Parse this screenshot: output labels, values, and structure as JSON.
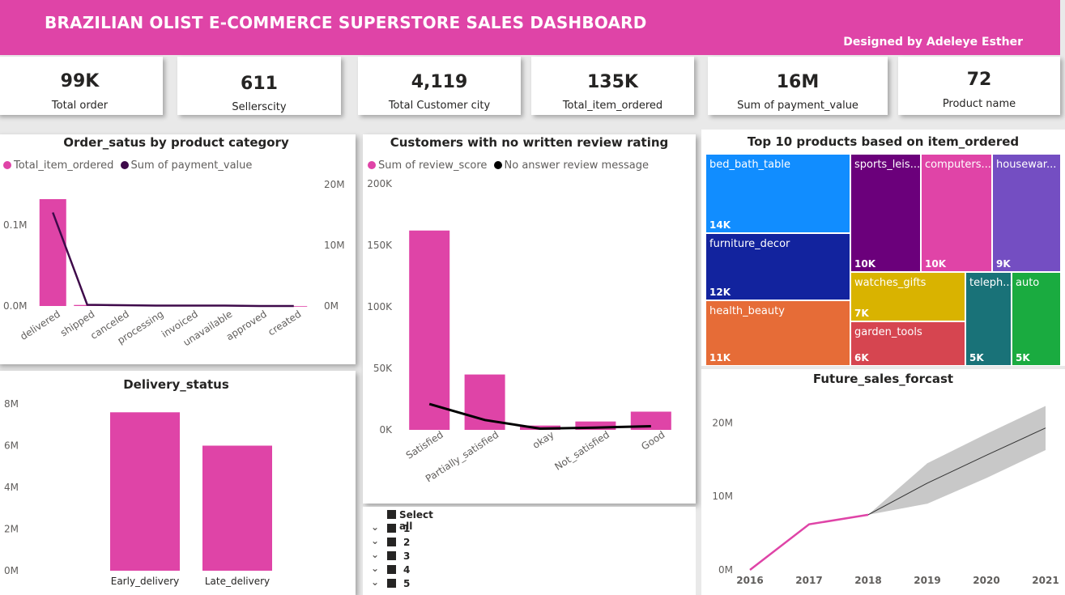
{
  "header": {
    "title": "BRAZILIAN OLIST E-COMMERCE SUPERSTORE SALES DASHBOARD",
    "credit": "Designed by Adeleye Esther"
  },
  "kpis": [
    {
      "value": "99K",
      "label": "Total order"
    },
    {
      "value": "611",
      "label": "Sellerscity"
    },
    {
      "value": "4,119",
      "label": "Total Customer city"
    },
    {
      "value": "135K",
      "label": "Total_item_ordered"
    },
    {
      "value": "16M",
      "label": "Sum of payment_value"
    },
    {
      "value": "72",
      "label": "Product name"
    }
  ],
  "colors": {
    "header": "#df44a7",
    "bar": "#df44a7",
    "line_dark": "#3e0a4a",
    "line_black": "#000000",
    "forecast_band": "#c8c8c8"
  },
  "chart_data": [
    {
      "type": "bar",
      "subtype": "bar+line combo",
      "title": "Order_satus by product category",
      "legend": [
        "Total_item_ordered",
        "Sum of payment_value"
      ],
      "categories": [
        "delivered",
        "shipped",
        "canceled",
        "processing",
        "invoiced",
        "unavailable",
        "approved",
        "created"
      ],
      "series": [
        {
          "name": "Total_item_ordered",
          "kind": "bar",
          "axis": "left",
          "values": [
            132000,
            1300,
            700,
            300,
            300,
            700,
            3,
            5
          ]
        },
        {
          "name": "Sum of payment_value",
          "kind": "line",
          "axis": "right",
          "values": [
            15400000,
            200000,
            140000,
            70000,
            60000,
            60000,
            300,
            1200
          ]
        }
      ],
      "left_axis": {
        "ticks": [
          "0.0M",
          "0.1M"
        ],
        "ylim": [
          0,
          150000
        ]
      },
      "right_axis": {
        "ticks": [
          "0M",
          "10M",
          "20M"
        ],
        "ylim": [
          0,
          20000000
        ]
      }
    },
    {
      "type": "bar",
      "subtype": "bar+line combo",
      "title": "Customers with no written review rating",
      "legend": [
        "Sum of review_score",
        "No answer review message"
      ],
      "categories": [
        "Satisfied",
        "Partially_satisfied",
        "okay",
        "Not_satisfied",
        "Good"
      ],
      "series": [
        {
          "name": "Sum of review_score",
          "kind": "bar",
          "values": [
            162000,
            45000,
            3500,
            6800,
            14800
          ]
        },
        {
          "name": "No answer review message",
          "kind": "line",
          "values": [
            21000,
            8000,
            1000,
            1800,
            3000
          ]
        }
      ],
      "y_axis": {
        "ticks": [
          "0K",
          "50K",
          "100K",
          "150K",
          "200K"
        ],
        "ylim": [
          0,
          200000
        ]
      }
    },
    {
      "type": "treemap",
      "title": "Top 10 products based on item_ordered",
      "items": [
        {
          "name": "bed_bath_table",
          "label": "14K",
          "color": "#118dff"
        },
        {
          "name": "furniture_decor",
          "label": "12K",
          "color": "#12239e"
        },
        {
          "name": "health_beauty",
          "label": "11K",
          "color": "#e66c37"
        },
        {
          "name": "sports_leis...",
          "label": "10K",
          "color": "#6b007b"
        },
        {
          "name": "computers...",
          "label": "10K",
          "color": "#e044a7"
        },
        {
          "name": "housewar...",
          "label": "9K",
          "color": "#744ec2"
        },
        {
          "name": "watches_gifts",
          "label": "7K",
          "color": "#d9b300"
        },
        {
          "name": "garden_tools",
          "label": "6K",
          "color": "#d64550"
        },
        {
          "name": "teleph...",
          "label": "5K",
          "color": "#197278"
        },
        {
          "name": "auto",
          "label": "5K",
          "color": "#1aab40"
        }
      ]
    },
    {
      "type": "bar",
      "title": "Delivery_status",
      "categories": [
        "Early_delivery",
        "Late_delivery"
      ],
      "values": [
        7600000,
        6000000
      ],
      "y_axis": {
        "ticks": [
          "0M",
          "2M",
          "4M",
          "6M",
          "8M"
        ],
        "ylim": [
          0,
          8000000
        ]
      }
    },
    {
      "type": "line",
      "title": "Future_sales_forcast",
      "x": [
        2016,
        2017,
        2018
      ],
      "actual": [
        0,
        6200000,
        7500000
      ],
      "forecast": {
        "x": [
          2018,
          2019,
          2020,
          2021
        ],
        "values": [
          7500000,
          11800000,
          15600000,
          19300000
        ],
        "upper": [
          7500000,
          14500000,
          18500000,
          22300000
        ],
        "lower": [
          7500000,
          9000000,
          12500000,
          16300000
        ]
      },
      "x_ticks": [
        "2016",
        "2017",
        "2018",
        "2019",
        "2020",
        "2021"
      ],
      "y_axis": {
        "ticks": [
          "0M",
          "10M",
          "20M"
        ],
        "ylim": [
          0,
          24000000
        ]
      }
    }
  ],
  "slicer": {
    "select_all": "Select all",
    "items": [
      "1",
      "2",
      "3",
      "4",
      "5"
    ]
  }
}
